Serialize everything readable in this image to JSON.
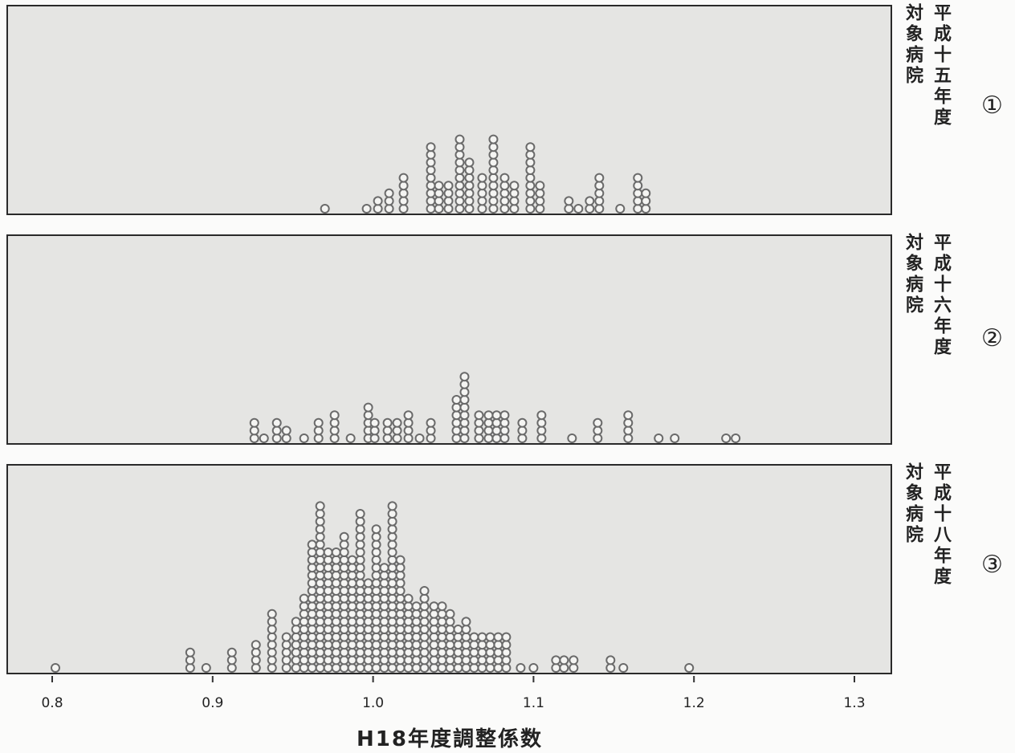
{
  "chart_data": {
    "type": "dotplot",
    "xlabel": "H18年度調整係数",
    "xlim": [
      0.8,
      1.3
    ],
    "xticks": [
      "0.8",
      "0.9",
      "1.0",
      "1.1",
      "1.2",
      "1.3"
    ],
    "panels": [
      {
        "label_inner": "対象病院",
        "label_outer": "平成十五年度",
        "number": "①",
        "points": [
          {
            "x": 0.97,
            "n": 1
          },
          {
            "x": 0.996,
            "n": 1
          },
          {
            "x": 1.003,
            "n": 2
          },
          {
            "x": 1.01,
            "n": 3
          },
          {
            "x": 1.019,
            "n": 5
          },
          {
            "x": 1.036,
            "n": 9
          },
          {
            "x": 1.041,
            "n": 4
          },
          {
            "x": 1.047,
            "n": 4
          },
          {
            "x": 1.054,
            "n": 10
          },
          {
            "x": 1.06,
            "n": 7
          },
          {
            "x": 1.068,
            "n": 5
          },
          {
            "x": 1.075,
            "n": 10
          },
          {
            "x": 1.082,
            "n": 5
          },
          {
            "x": 1.088,
            "n": 4
          },
          {
            "x": 1.098,
            "n": 9
          },
          {
            "x": 1.104,
            "n": 4
          },
          {
            "x": 1.122,
            "n": 2
          },
          {
            "x": 1.128,
            "n": 1
          },
          {
            "x": 1.135,
            "n": 2
          },
          {
            "x": 1.141,
            "n": 5
          },
          {
            "x": 1.154,
            "n": 1
          },
          {
            "x": 1.165,
            "n": 5
          },
          {
            "x": 1.17,
            "n": 3
          }
        ]
      },
      {
        "label_inner": "対象病院",
        "label_outer": "平成十六年度",
        "number": "②",
        "points": [
          {
            "x": 0.926,
            "n": 3
          },
          {
            "x": 0.932,
            "n": 1
          },
          {
            "x": 0.94,
            "n": 3
          },
          {
            "x": 0.946,
            "n": 2
          },
          {
            "x": 0.957,
            "n": 1
          },
          {
            "x": 0.966,
            "n": 3
          },
          {
            "x": 0.976,
            "n": 4
          },
          {
            "x": 0.986,
            "n": 1
          },
          {
            "x": 0.997,
            "n": 5
          },
          {
            "x": 1.001,
            "n": 3
          },
          {
            "x": 1.009,
            "n": 3
          },
          {
            "x": 1.015,
            "n": 3
          },
          {
            "x": 1.022,
            "n": 4
          },
          {
            "x": 1.029,
            "n": 1
          },
          {
            "x": 1.036,
            "n": 3
          },
          {
            "x": 1.052,
            "n": 6
          },
          {
            "x": 1.057,
            "n": 9
          },
          {
            "x": 1.066,
            "n": 4
          },
          {
            "x": 1.072,
            "n": 4
          },
          {
            "x": 1.077,
            "n": 4
          },
          {
            "x": 1.082,
            "n": 4
          },
          {
            "x": 1.093,
            "n": 3
          },
          {
            "x": 1.105,
            "n": 4
          },
          {
            "x": 1.124,
            "n": 1
          },
          {
            "x": 1.14,
            "n": 3
          },
          {
            "x": 1.159,
            "n": 4
          },
          {
            "x": 1.178,
            "n": 1
          },
          {
            "x": 1.188,
            "n": 1
          },
          {
            "x": 1.22,
            "n": 1
          },
          {
            "x": 1.226,
            "n": 1
          }
        ]
      },
      {
        "label_inner": "対象病院",
        "label_outer": "平成十八年度",
        "number": "③",
        "points": [
          {
            "x": 0.802,
            "n": 1
          },
          {
            "x": 0.886,
            "n": 3
          },
          {
            "x": 0.896,
            "n": 1
          },
          {
            "x": 0.912,
            "n": 3
          },
          {
            "x": 0.927,
            "n": 4
          },
          {
            "x": 0.937,
            "n": 8
          },
          {
            "x": 0.946,
            "n": 5
          },
          {
            "x": 0.952,
            "n": 7
          },
          {
            "x": 0.957,
            "n": 10
          },
          {
            "x": 0.962,
            "n": 17
          },
          {
            "x": 0.967,
            "n": 22
          },
          {
            "x": 0.972,
            "n": 16
          },
          {
            "x": 0.977,
            "n": 16
          },
          {
            "x": 0.982,
            "n": 18
          },
          {
            "x": 0.987,
            "n": 15
          },
          {
            "x": 0.992,
            "n": 21
          },
          {
            "x": 0.997,
            "n": 12
          },
          {
            "x": 1.002,
            "n": 19
          },
          {
            "x": 1.007,
            "n": 14
          },
          {
            "x": 1.012,
            "n": 22
          },
          {
            "x": 1.017,
            "n": 15
          },
          {
            "x": 1.022,
            "n": 10
          },
          {
            "x": 1.027,
            "n": 9
          },
          {
            "x": 1.032,
            "n": 11
          },
          {
            "x": 1.038,
            "n": 9
          },
          {
            "x": 1.043,
            "n": 9
          },
          {
            "x": 1.048,
            "n": 8
          },
          {
            "x": 1.053,
            "n": 6
          },
          {
            "x": 1.058,
            "n": 7
          },
          {
            "x": 1.063,
            "n": 5
          },
          {
            "x": 1.068,
            "n": 5
          },
          {
            "x": 1.073,
            "n": 5
          },
          {
            "x": 1.078,
            "n": 5
          },
          {
            "x": 1.083,
            "n": 5
          },
          {
            "x": 1.092,
            "n": 1
          },
          {
            "x": 1.1,
            "n": 1
          },
          {
            "x": 1.114,
            "n": 2
          },
          {
            "x": 1.119,
            "n": 2
          },
          {
            "x": 1.125,
            "n": 2
          },
          {
            "x": 1.148,
            "n": 2
          },
          {
            "x": 1.156,
            "n": 1
          },
          {
            "x": 1.197,
            "n": 1
          }
        ]
      }
    ]
  }
}
